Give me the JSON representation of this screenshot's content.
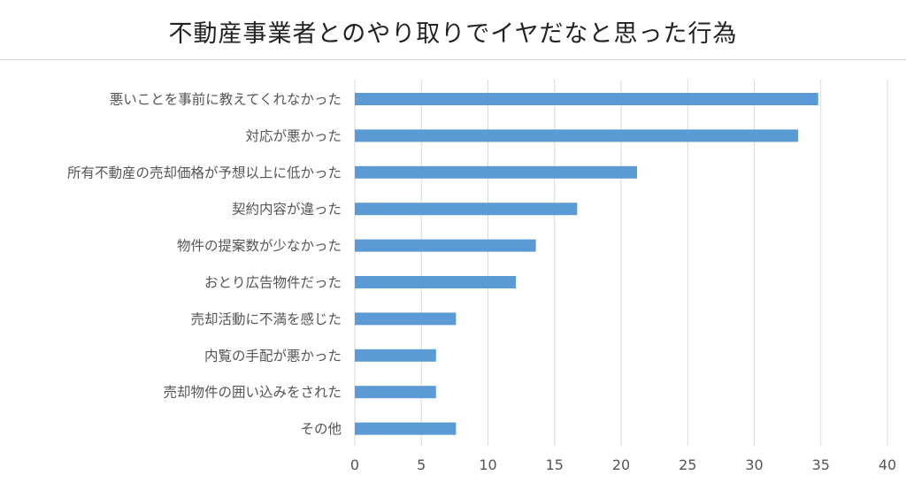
{
  "chart_data": {
    "type": "bar",
    "orientation": "horizontal",
    "title": "不動産事業者とのやり取りでイヤだなと思った行為",
    "categories": [
      "悪いことを事前に教えてくれなかった",
      "対応が悪かった",
      "所有不動産の売却価格が予想以上に低かった",
      "契約内容が違った",
      "物件の提案数が少なかった",
      "おとり広告物件だった",
      "売却活動に不満を感じた",
      "内覧の手配が悪かった",
      "売却物件の囲い込みをされた",
      "その他"
    ],
    "values": [
      34.8,
      33.3,
      21.2,
      16.7,
      13.6,
      12.1,
      7.6,
      6.1,
      6.1,
      7.6
    ],
    "xlim": [
      0,
      40
    ],
    "xticks": [
      0,
      5,
      10,
      15,
      20,
      25,
      30,
      35,
      40
    ],
    "xlabel": "",
    "ylabel": "",
    "grid": "vertical",
    "bar_color": "#5b9bd5",
    "grid_color": "#d9d9d9"
  }
}
